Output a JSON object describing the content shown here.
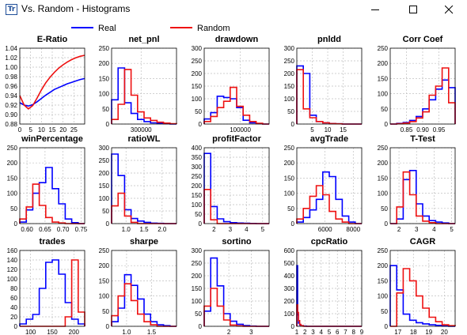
{
  "window": {
    "title": "Vs. Random - Histograms",
    "icon_glyph": "Tr",
    "controls": [
      "minimize-icon",
      "maximize-icon",
      "close-icon"
    ]
  },
  "legend": {
    "items": [
      {
        "name": "Real",
        "color": "#0000ff"
      },
      {
        "name": "Random",
        "color": "#ee1111"
      }
    ]
  },
  "colors": {
    "real": "#0000ff",
    "random": "#ee1111",
    "grid": "#c0c0c0"
  },
  "chart_data": [
    {
      "type": "line",
      "title": "E-Ratio",
      "xlim": [
        0,
        30
      ],
      "ylim": [
        0.88,
        1.04
      ],
      "xticks": [
        0,
        5,
        10,
        15,
        20,
        25
      ],
      "yticks": [
        0.88,
        0.9,
        0.92,
        0.94,
        0.96,
        0.98,
        1.0,
        1.02,
        1.04
      ],
      "series": [
        {
          "name": "Real",
          "x": [
            0,
            2,
            4,
            6,
            8,
            10,
            12,
            14,
            16,
            18,
            20,
            22,
            24,
            26,
            28,
            30
          ],
          "y": [
            0.925,
            0.92,
            0.918,
            0.921,
            0.927,
            0.934,
            0.941,
            0.947,
            0.953,
            0.957,
            0.961,
            0.965,
            0.968,
            0.971,
            0.974,
            0.976
          ]
        },
        {
          "name": "Random",
          "x": [
            0,
            2,
            4,
            6,
            8,
            10,
            12,
            14,
            16,
            18,
            20,
            22,
            24,
            26,
            28,
            30
          ],
          "y": [
            0.94,
            0.92,
            0.912,
            0.919,
            0.935,
            0.952,
            0.967,
            0.979,
            0.989,
            0.998,
            1.005,
            1.011,
            1.016,
            1.02,
            1.023,
            1.025
          ]
        }
      ]
    },
    {
      "type": "histogram",
      "title": "net_pnl",
      "xlim": [
        50000,
        600000
      ],
      "ylim": [
        0,
        250
      ],
      "xticks": [
        300000
      ],
      "xticklabels": [
        "300000"
      ],
      "yticks": [
        0,
        50,
        100,
        150,
        200,
        250
      ],
      "edges": [
        50000,
        105000,
        160000,
        215000,
        270000,
        325000,
        380000,
        435000,
        490000,
        545000,
        600000
      ],
      "series": [
        {
          "name": "Real",
          "values": [
            80,
            185,
            70,
            35,
            15,
            8,
            4,
            2,
            1,
            0
          ]
        },
        {
          "name": "Random",
          "values": [
            15,
            65,
            180,
            95,
            40,
            20,
            12,
            6,
            3,
            1
          ]
        }
      ]
    },
    {
      "type": "histogram",
      "title": "drawdown",
      "xlim": [
        0,
        180000
      ],
      "ylim": [
        0,
        300
      ],
      "xticks": [
        100000
      ],
      "xticklabels": [
        "100000"
      ],
      "yticks": [
        0,
        50,
        100,
        150,
        200,
        250,
        300
      ],
      "edges": [
        0,
        18000,
        36000,
        54000,
        72000,
        90000,
        108000,
        126000,
        144000,
        162000,
        180000
      ],
      "series": [
        {
          "name": "Real",
          "values": [
            20,
            45,
            110,
            105,
            100,
            65,
            15,
            5,
            2,
            0
          ]
        },
        {
          "name": "Random",
          "values": [
            10,
            30,
            65,
            90,
            145,
            70,
            35,
            10,
            3,
            0
          ]
        }
      ]
    },
    {
      "type": "histogram",
      "title": "pnldd",
      "xlim": [
        0,
        21
      ],
      "ylim": [
        0,
        300
      ],
      "xticks": [
        5,
        10,
        15
      ],
      "xticklabels": [
        "5",
        "10",
        "15"
      ],
      "yticks": [
        0,
        50,
        100,
        150,
        200,
        250,
        300
      ],
      "edges": [
        0,
        2.1,
        4.2,
        6.3,
        8.4,
        10.5,
        12.6,
        14.7,
        16.8,
        18.9,
        21
      ],
      "series": [
        {
          "name": "Real",
          "values": [
            230,
            200,
            35,
            10,
            5,
            2,
            1,
            0,
            0,
            0
          ]
        },
        {
          "name": "Random",
          "values": [
            215,
            60,
            25,
            10,
            5,
            2,
            1,
            0,
            0,
            0
          ]
        }
      ]
    },
    {
      "type": "histogram",
      "title": "Corr Coef",
      "xlim": [
        0.8,
        1.0
      ],
      "ylim": [
        0,
        250
      ],
      "xticks": [
        0.85,
        0.9,
        0.95
      ],
      "xticklabels": [
        "0.85",
        "0.90",
        "0.95"
      ],
      "yticks": [
        0,
        50,
        100,
        150,
        200,
        250
      ],
      "edges": [
        0.8,
        0.82,
        0.84,
        0.86,
        0.88,
        0.9,
        0.92,
        0.94,
        0.96,
        0.98,
        1.0
      ],
      "series": [
        {
          "name": "Real",
          "values": [
            0,
            2,
            5,
            12,
            25,
            50,
            80,
            115,
            145,
            120
          ]
        },
        {
          "name": "Random",
          "values": [
            0,
            1,
            3,
            8,
            20,
            40,
            95,
            125,
            185,
            70
          ]
        }
      ]
    },
    {
      "type": "histogram",
      "title": "winPercentage",
      "xlim": [
        0.58,
        0.76
      ],
      "ylim": [
        0,
        250
      ],
      "xticks": [
        0.6,
        0.65,
        0.7,
        0.75
      ],
      "xticklabels": [
        "0.60",
        "0.65",
        "0.70",
        "0.75"
      ],
      "yticks": [
        0,
        50,
        100,
        150,
        200,
        250
      ],
      "edges": [
        0.58,
        0.598,
        0.616,
        0.634,
        0.652,
        0.67,
        0.688,
        0.706,
        0.724,
        0.742,
        0.76
      ],
      "series": [
        {
          "name": "Real",
          "values": [
            5,
            45,
            100,
            135,
            185,
            115,
            65,
            15,
            3,
            0
          ]
        },
        {
          "name": "Random",
          "values": [
            15,
            55,
            130,
            60,
            20,
            5,
            2,
            0,
            0,
            0
          ]
        }
      ]
    },
    {
      "type": "histogram",
      "title": "ratioWL",
      "xlim": [
        0.6,
        2.4
      ],
      "ylim": [
        0,
        300
      ],
      "xticks": [
        1.0,
        1.5,
        2.0
      ],
      "xticklabels": [
        "1.0",
        "1.5",
        "2.0"
      ],
      "yticks": [
        0,
        50,
        100,
        150,
        200,
        250,
        300
      ],
      "edges": [
        0.6,
        0.78,
        0.96,
        1.14,
        1.32,
        1.5,
        1.68,
        1.86,
        2.04,
        2.22,
        2.4
      ],
      "series": [
        {
          "name": "Real",
          "values": [
            275,
            190,
            55,
            20,
            10,
            5,
            2,
            1,
            0,
            0
          ]
        },
        {
          "name": "Random",
          "values": [
            70,
            120,
            30,
            5,
            0,
            0,
            0,
            0,
            0,
            0
          ]
        }
      ]
    },
    {
      "type": "histogram",
      "title": "profitFactor",
      "xlim": [
        1.4,
        5.4
      ],
      "ylim": [
        0,
        400
      ],
      "xticks": [
        2,
        3,
        4,
        5
      ],
      "xticklabels": [
        "2",
        "3",
        "4",
        "5"
      ],
      "yticks": [
        0,
        50,
        100,
        150,
        200,
        250,
        300,
        350,
        400
      ],
      "edges": [
        1.4,
        1.8,
        2.2,
        2.6,
        3.0,
        3.4,
        3.8,
        4.2,
        4.6,
        5.0,
        5.4
      ],
      "series": [
        {
          "name": "Real",
          "values": [
            370,
            90,
            25,
            10,
            5,
            3,
            2,
            1,
            0,
            0
          ]
        },
        {
          "name": "Random",
          "values": [
            180,
            20,
            0,
            0,
            0,
            0,
            0,
            0,
            0,
            0
          ]
        }
      ]
    },
    {
      "type": "histogram",
      "title": "avgTrade",
      "xlim": [
        4000,
        8600
      ],
      "ylim": [
        0,
        250
      ],
      "xticks": [
        6000,
        8000
      ],
      "xticklabels": [
        "6000",
        "8000"
      ],
      "yticks": [
        0,
        50,
        100,
        150,
        200,
        250
      ],
      "edges": [
        4000,
        4460,
        4920,
        5380,
        5840,
        6300,
        6760,
        7220,
        7680,
        8140,
        8600
      ],
      "series": [
        {
          "name": "Real",
          "values": [
            5,
            20,
            45,
            80,
            170,
            155,
            80,
            25,
            5,
            0
          ]
        },
        {
          "name": "Random",
          "values": [
            15,
            50,
            90,
            125,
            95,
            40,
            15,
            5,
            0,
            0
          ]
        }
      ]
    },
    {
      "type": "histogram",
      "title": "T-Test",
      "xlim": [
        1.5,
        5.2
      ],
      "ylim": [
        0,
        250
      ],
      "xticks": [
        2,
        3,
        4,
        5
      ],
      "xticklabels": [
        "2",
        "3",
        "4",
        "5"
      ],
      "yticks": [
        0,
        50,
        100,
        150,
        200,
        250
      ],
      "edges": [
        1.5,
        1.87,
        2.24,
        2.61,
        2.98,
        3.35,
        3.72,
        4.09,
        4.46,
        4.83,
        5.2
      ],
      "series": [
        {
          "name": "Real",
          "values": [
            0,
            15,
            145,
            175,
            65,
            25,
            10,
            5,
            2,
            0
          ]
        },
        {
          "name": "Random",
          "values": [
            0,
            55,
            170,
            95,
            25,
            8,
            3,
            0,
            0,
            0
          ]
        }
      ]
    },
    {
      "type": "histogram",
      "title": "trades",
      "xlim": [
        75,
        225
      ],
      "ylim": [
        0,
        160
      ],
      "xticks": [
        100,
        150,
        200
      ],
      "xticklabels": [
        "100",
        "150",
        "200"
      ],
      "yticks": [
        0,
        20,
        40,
        60,
        80,
        100,
        120,
        140,
        160
      ],
      "edges": [
        75,
        90,
        105,
        120,
        135,
        150,
        165,
        180,
        195,
        210,
        225
      ],
      "series": [
        {
          "name": "Real",
          "values": [
            5,
            15,
            25,
            80,
            135,
            140,
            110,
            50,
            15,
            5
          ]
        },
        {
          "name": "Random",
          "values": [
            0,
            0,
            0,
            0,
            0,
            0,
            0,
            20,
            140,
            30
          ]
        }
      ]
    },
    {
      "type": "histogram",
      "title": "sharpe",
      "xlim": [
        0.7,
        2.0
      ],
      "ylim": [
        0,
        250
      ],
      "xticks": [
        1.0,
        1.5
      ],
      "xticklabels": [
        "1.0",
        "1.5"
      ],
      "yticks": [
        0,
        50,
        100,
        150,
        200,
        250
      ],
      "edges": [
        0.7,
        0.83,
        0.96,
        1.09,
        1.22,
        1.35,
        1.48,
        1.61,
        1.74,
        1.87,
        2.0
      ],
      "series": [
        {
          "name": "Real",
          "values": [
            15,
            60,
            170,
            135,
            90,
            40,
            15,
            5,
            2,
            0
          ]
        },
        {
          "name": "Random",
          "values": [
            35,
            100,
            140,
            85,
            40,
            15,
            5,
            0,
            0,
            0
          ]
        }
      ]
    },
    {
      "type": "histogram",
      "title": "sortino",
      "xlim": [
        0.9,
        3.8
      ],
      "ylim": [
        0,
        300
      ],
      "xticks": [
        2,
        3
      ],
      "xticklabels": [
        "2",
        "3"
      ],
      "yticks": [
        0,
        50,
        100,
        150,
        200,
        250,
        300
      ],
      "edges": [
        0.9,
        1.19,
        1.48,
        1.77,
        2.06,
        2.35,
        2.64,
        2.93,
        3.22,
        3.51,
        3.8
      ],
      "series": [
        {
          "name": "Real",
          "values": [
            60,
            270,
            160,
            50,
            20,
            8,
            3,
            1,
            0,
            0
          ]
        },
        {
          "name": "Random",
          "values": [
            80,
            150,
            80,
            25,
            5,
            2,
            0,
            0,
            0,
            0
          ]
        }
      ]
    },
    {
      "type": "histogram",
      "title": "cpcRatio",
      "xlim": [
        1,
        9
      ],
      "ylim": [
        0,
        600
      ],
      "xticks": [
        1,
        2,
        3,
        4,
        5,
        6,
        7,
        8,
        9
      ],
      "xticklabels": [
        "1",
        "2",
        "3",
        "4",
        "5",
        "6",
        "7",
        "8",
        "9"
      ],
      "yticks": [
        0,
        100,
        200,
        300,
        400,
        500,
        600
      ],
      "edges": [
        1,
        1.1,
        1.2,
        1.35,
        1.5,
        1.8,
        2.2,
        3,
        5,
        7,
        9
      ],
      "series": [
        {
          "name": "Real",
          "values": [
            480,
            90,
            25,
            10,
            5,
            2,
            0,
            0,
            0,
            0
          ]
        },
        {
          "name": "Random",
          "values": [
            170,
            110,
            45,
            15,
            5,
            0,
            0,
            0,
            0,
            0
          ]
        }
      ]
    },
    {
      "type": "histogram",
      "title": "CAGR",
      "xlim": [
        16.5,
        20.7
      ],
      "ylim": [
        0,
        250
      ],
      "xticks": [
        17,
        18,
        19,
        20
      ],
      "xticklabels": [
        "17",
        "18",
        "19",
        "20"
      ],
      "yticks": [
        0,
        50,
        100,
        150,
        200,
        250
      ],
      "edges": [
        16.5,
        16.92,
        17.34,
        17.76,
        18.18,
        18.6,
        19.02,
        19.44,
        19.86,
        20.28,
        20.7
      ],
      "series": [
        {
          "name": "Real",
          "values": [
            200,
            120,
            40,
            20,
            12,
            8,
            5,
            3,
            1,
            0
          ]
        },
        {
          "name": "Random",
          "values": [
            0,
            110,
            190,
            150,
            100,
            60,
            30,
            15,
            5,
            2
          ]
        }
      ]
    }
  ]
}
